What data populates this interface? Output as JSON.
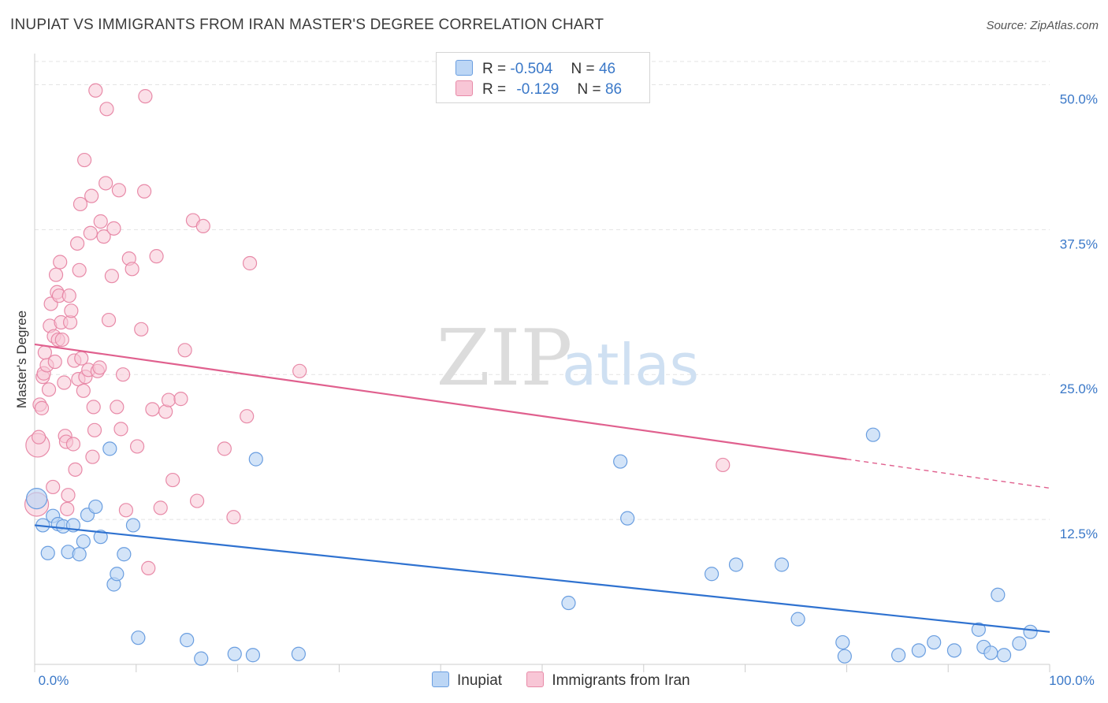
{
  "title": "INUPIAT VS IMMIGRANTS FROM IRAN MASTER'S DEGREE CORRELATION CHART",
  "source": "Source: ZipAtlas.com",
  "watermark": {
    "zip": "ZIP",
    "atlas": "atlas"
  },
  "legend": {
    "rows": [
      {
        "r_label": "R =",
        "r_value": "-0.504",
        "n_label": "N =",
        "n_value": "46"
      },
      {
        "r_label": "R =",
        "r_value": "-0.129",
        "n_label": "N =",
        "n_value": "86"
      }
    ]
  },
  "colors": {
    "inupiat_fill": "#bcd6f5",
    "inupiat_stroke": "#6a9ee0",
    "inupiat_line": "#2f72d0",
    "iran_fill": "#f8c6d6",
    "iran_stroke": "#e88aa8",
    "iran_line": "#e0608e",
    "grid": "#e3e3e3",
    "axis_label": "#3a78c8"
  },
  "chart_data": {
    "type": "scatter",
    "title": "INUPIAT VS IMMIGRANTS FROM IRAN MASTER'S DEGREE CORRELATION CHART",
    "xlabel": "",
    "ylabel": "Master's Degree",
    "xlim": [
      0,
      100
    ],
    "ylim": [
      0,
      52
    ],
    "x_tick_labels": [
      "0.0%",
      "100.0%"
    ],
    "y_ticks": [
      12.5,
      25.0,
      37.5,
      50.0
    ],
    "y_tick_labels": [
      "12.5%",
      "25.0%",
      "37.5%",
      "50.0%"
    ],
    "grid": true,
    "legend_position": "top-center",
    "series": [
      {
        "name": "Inupiat",
        "trend": {
          "x": [
            0,
            100
          ],
          "y": [
            12.0,
            2.8
          ]
        },
        "points": [
          [
            0.2,
            14.3
          ],
          [
            0.8,
            12.0
          ],
          [
            1.3,
            9.6
          ],
          [
            1.8,
            12.8
          ],
          [
            2.3,
            12.1
          ],
          [
            2.8,
            11.9
          ],
          [
            3.3,
            9.7
          ],
          [
            3.8,
            12.0
          ],
          [
            4.4,
            9.5
          ],
          [
            4.8,
            10.6
          ],
          [
            5.2,
            12.9
          ],
          [
            6.0,
            13.6
          ],
          [
            6.5,
            11.0
          ],
          [
            7.4,
            18.6
          ],
          [
            7.8,
            6.9
          ],
          [
            8.1,
            7.8
          ],
          [
            8.8,
            9.5
          ],
          [
            9.7,
            12.0
          ],
          [
            10.2,
            2.3
          ],
          [
            15.0,
            2.1
          ],
          [
            19.7,
            0.9
          ],
          [
            21.5,
            0.8
          ],
          [
            21.8,
            17.7
          ],
          [
            26.0,
            0.9
          ],
          [
            52.6,
            5.3
          ],
          [
            57.7,
            17.5
          ],
          [
            58.4,
            12.6
          ],
          [
            66.7,
            7.8
          ],
          [
            69.1,
            8.6
          ],
          [
            73.6,
            8.6
          ],
          [
            75.2,
            3.9
          ],
          [
            79.6,
            1.9
          ],
          [
            79.8,
            0.7
          ],
          [
            82.6,
            19.8
          ],
          [
            85.1,
            0.8
          ],
          [
            87.1,
            1.2
          ],
          [
            88.6,
            1.9
          ],
          [
            90.6,
            1.2
          ],
          [
            93.0,
            3.0
          ],
          [
            93.5,
            1.5
          ],
          [
            94.2,
            1.0
          ],
          [
            94.9,
            6.0
          ],
          [
            95.5,
            0.8
          ],
          [
            97.0,
            1.8
          ],
          [
            98.1,
            2.8
          ],
          [
            16.4,
            0.5
          ]
        ]
      },
      {
        "name": "Immigrants from Iran",
        "trend": {
          "x": [
            0,
            80
          ],
          "y": [
            27.6,
            17.7
          ]
        },
        "trend_dashed": {
          "x": [
            80,
            100
          ],
          "y": [
            17.7,
            15.2
          ]
        },
        "points": [
          [
            0.2,
            13.8
          ],
          [
            0.3,
            18.9
          ],
          [
            0.4,
            19.6
          ],
          [
            0.5,
            22.4
          ],
          [
            0.7,
            22.1
          ],
          [
            0.8,
            24.8
          ],
          [
            0.9,
            25.1
          ],
          [
            1.0,
            26.9
          ],
          [
            1.2,
            25.8
          ],
          [
            1.4,
            23.7
          ],
          [
            1.5,
            29.2
          ],
          [
            1.6,
            31.1
          ],
          [
            1.8,
            15.3
          ],
          [
            1.9,
            28.3
          ],
          [
            2.0,
            26.1
          ],
          [
            2.1,
            33.6
          ],
          [
            2.2,
            32.1
          ],
          [
            2.3,
            28.0
          ],
          [
            2.4,
            31.8
          ],
          [
            2.5,
            34.7
          ],
          [
            2.6,
            29.5
          ],
          [
            2.7,
            28.0
          ],
          [
            2.9,
            24.3
          ],
          [
            3.0,
            19.7
          ],
          [
            3.1,
            19.2
          ],
          [
            3.2,
            13.4
          ],
          [
            3.3,
            14.6
          ],
          [
            3.4,
            31.8
          ],
          [
            3.5,
            29.5
          ],
          [
            3.6,
            30.5
          ],
          [
            3.8,
            19.0
          ],
          [
            3.9,
            26.2
          ],
          [
            4.2,
            36.3
          ],
          [
            4.3,
            24.6
          ],
          [
            4.4,
            34.0
          ],
          [
            4.5,
            39.7
          ],
          [
            4.6,
            26.4
          ],
          [
            4.8,
            23.6
          ],
          [
            4.9,
            43.5
          ],
          [
            5.0,
            24.8
          ],
          [
            5.3,
            25.4
          ],
          [
            5.5,
            37.2
          ],
          [
            5.6,
            40.4
          ],
          [
            5.7,
            17.9
          ],
          [
            5.8,
            22.2
          ],
          [
            5.9,
            20.2
          ],
          [
            6.2,
            25.3
          ],
          [
            6.4,
            25.6
          ],
          [
            6.5,
            38.2
          ],
          [
            6.8,
            36.9
          ],
          [
            7.1,
            47.9
          ],
          [
            7.3,
            29.7
          ],
          [
            7.6,
            33.5
          ],
          [
            7.8,
            37.6
          ],
          [
            8.1,
            22.2
          ],
          [
            8.3,
            40.9
          ],
          [
            8.5,
            20.3
          ],
          [
            8.7,
            25.0
          ],
          [
            9.0,
            13.3
          ],
          [
            9.3,
            35.0
          ],
          [
            9.6,
            34.1
          ],
          [
            10.1,
            18.8
          ],
          [
            10.5,
            28.9
          ],
          [
            10.8,
            40.8
          ],
          [
            11.2,
            8.3
          ],
          [
            11.6,
            22.0
          ],
          [
            12.0,
            35.2
          ],
          [
            12.4,
            13.5
          ],
          [
            12.9,
            21.8
          ],
          [
            13.2,
            22.8
          ],
          [
            13.6,
            15.9
          ],
          [
            14.4,
            22.9
          ],
          [
            14.8,
            27.1
          ],
          [
            15.6,
            38.3
          ],
          [
            16.0,
            14.1
          ],
          [
            16.6,
            37.8
          ],
          [
            18.7,
            18.6
          ],
          [
            19.6,
            12.7
          ],
          [
            20.9,
            21.4
          ],
          [
            21.2,
            34.6
          ],
          [
            26.1,
            25.3
          ],
          [
            67.8,
            17.2
          ],
          [
            10.9,
            49.0
          ],
          [
            6.0,
            49.5
          ],
          [
            7.0,
            41.5
          ],
          [
            4.0,
            16.8
          ]
        ]
      }
    ]
  },
  "bottom_legend": [
    "Inupiat",
    "Immigrants from Iran"
  ]
}
